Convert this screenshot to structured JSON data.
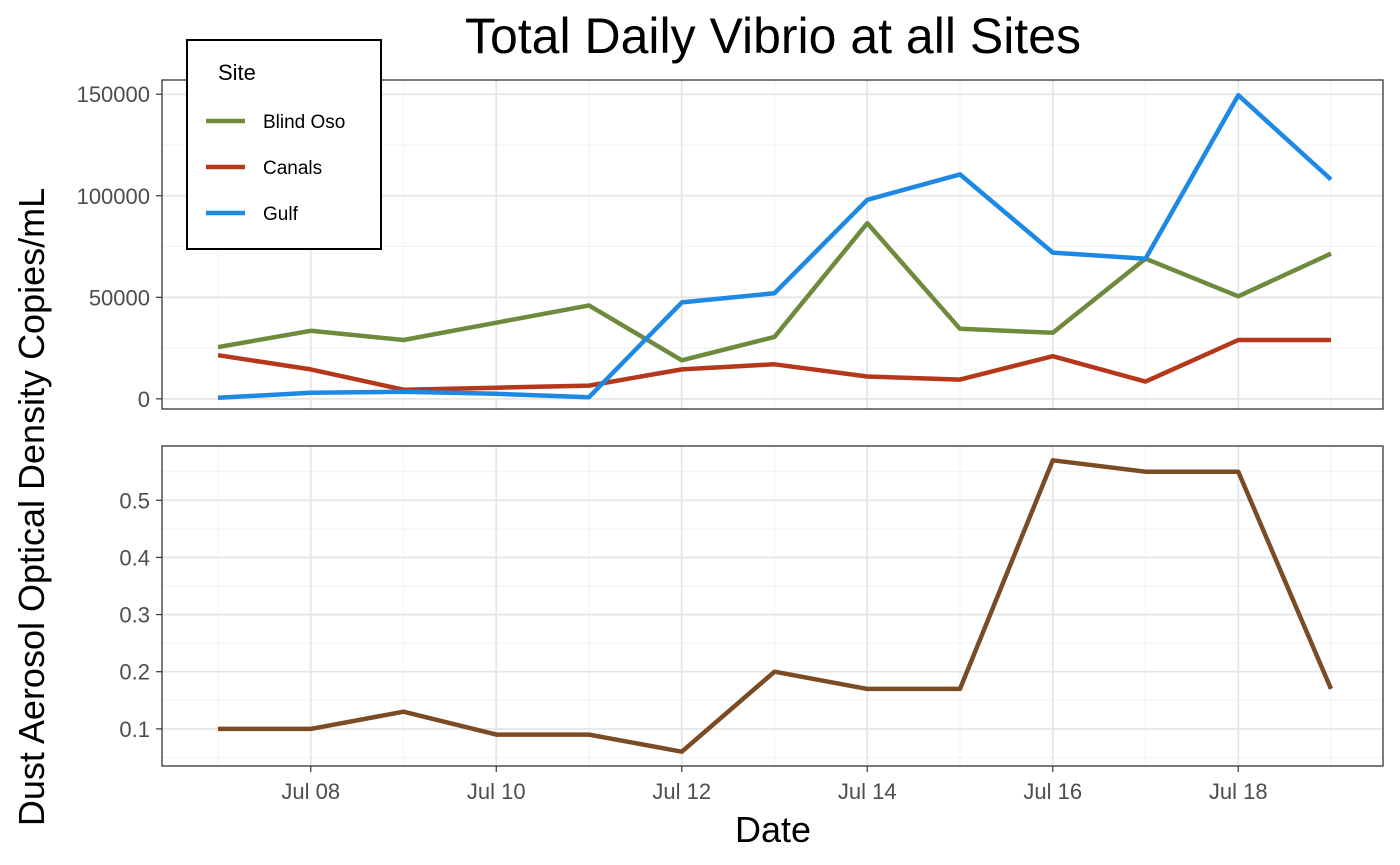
{
  "chart_data": {
    "type": "line",
    "title": "Total Daily Vibrio at all Sites",
    "xlabel": "Date",
    "ylabel": "Dust Aerosol Optical Density Copies/mL",
    "x_ticks": [
      "Jul 08",
      "Jul 10",
      "Jul 12",
      "Jul 14",
      "Jul 16",
      "Jul 18"
    ],
    "grid": true,
    "legend": {
      "title": "Site",
      "position": "top-left"
    },
    "panels": [
      {
        "name": "vibrio",
        "ylim": [
          -5000,
          157000
        ],
        "y_ticks": [
          0,
          50000,
          100000,
          150000
        ],
        "series": [
          {
            "name": "Blind Oso",
            "color": "#6e8b3d",
            "points": [
              [
                "2000-07-07",
                25500
              ],
              [
                "2000-07-08",
                33500
              ],
              [
                "2000-07-09",
                29000
              ],
              [
                "2000-07-10",
                37500
              ],
              [
                "2000-07-11",
                46000
              ],
              [
                "2000-07-12",
                19000
              ],
              [
                "2000-07-13",
                30500
              ],
              [
                "2000-07-14",
                86500
              ],
              [
                "2000-07-15",
                34500
              ],
              [
                "2000-07-16",
                32500
              ],
              [
                "2000-07-17",
                69000
              ],
              [
                "2000-07-18",
                50500
              ],
              [
                "2000-07-19",
                71500
              ]
            ]
          },
          {
            "name": "Canals",
            "color": "#b5381a",
            "points": [
              [
                "2000-07-07",
                21500
              ],
              [
                "2000-07-08",
                14500
              ],
              [
                "2000-07-09",
                4500
              ],
              [
                "2000-07-10",
                5500
              ],
              [
                "2000-07-11",
                6500
              ],
              [
                "2000-07-12",
                14500
              ],
              [
                "2000-07-13",
                17000
              ],
              [
                "2000-07-14",
                11000
              ],
              [
                "2000-07-15",
                9500
              ],
              [
                "2000-07-16",
                21000
              ],
              [
                "2000-07-17",
                8500
              ],
              [
                "2000-07-18",
                29000
              ],
              [
                "2000-07-19",
                29000
              ]
            ]
          },
          {
            "name": "Gulf",
            "color": "#1e88e5",
            "points": [
              [
                "2000-07-07",
                500
              ],
              [
                "2000-07-08",
                3000
              ],
              [
                "2000-07-09",
                3500
              ],
              [
                "2000-07-10",
                2500
              ],
              [
                "2000-07-11",
                800
              ],
              [
                "2000-07-12",
                47500
              ],
              [
                "2000-07-13",
                52000
              ],
              [
                "2000-07-14",
                98000
              ],
              [
                "2000-07-15",
                110500
              ],
              [
                "2000-07-16",
                72000
              ],
              [
                "2000-07-17",
                69000
              ],
              [
                "2000-07-18",
                149500
              ],
              [
                "2000-07-19",
                108000
              ]
            ]
          }
        ]
      },
      {
        "name": "dust",
        "ylim": [
          0.035,
          0.595
        ],
        "y_ticks": [
          0.1,
          0.2,
          0.3,
          0.4,
          0.5
        ],
        "series": [
          {
            "color": "#7b4b24",
            "points": [
              [
                "2000-07-07",
                0.1
              ],
              [
                "2000-07-08",
                0.1
              ],
              [
                "2000-07-09",
                0.13
              ],
              [
                "2000-07-10",
                0.09
              ],
              [
                "2000-07-11",
                0.09
              ],
              [
                "2000-07-12",
                0.06
              ],
              [
                "2000-07-13",
                0.2
              ],
              [
                "2000-07-14",
                0.17
              ],
              [
                "2000-07-15",
                0.17
              ],
              [
                "2000-07-16",
                0.57
              ],
              [
                "2000-07-17",
                0.55
              ],
              [
                "2000-07-18",
                0.55
              ],
              [
                "2000-07-19",
                0.17
              ]
            ]
          }
        ]
      }
    ]
  }
}
